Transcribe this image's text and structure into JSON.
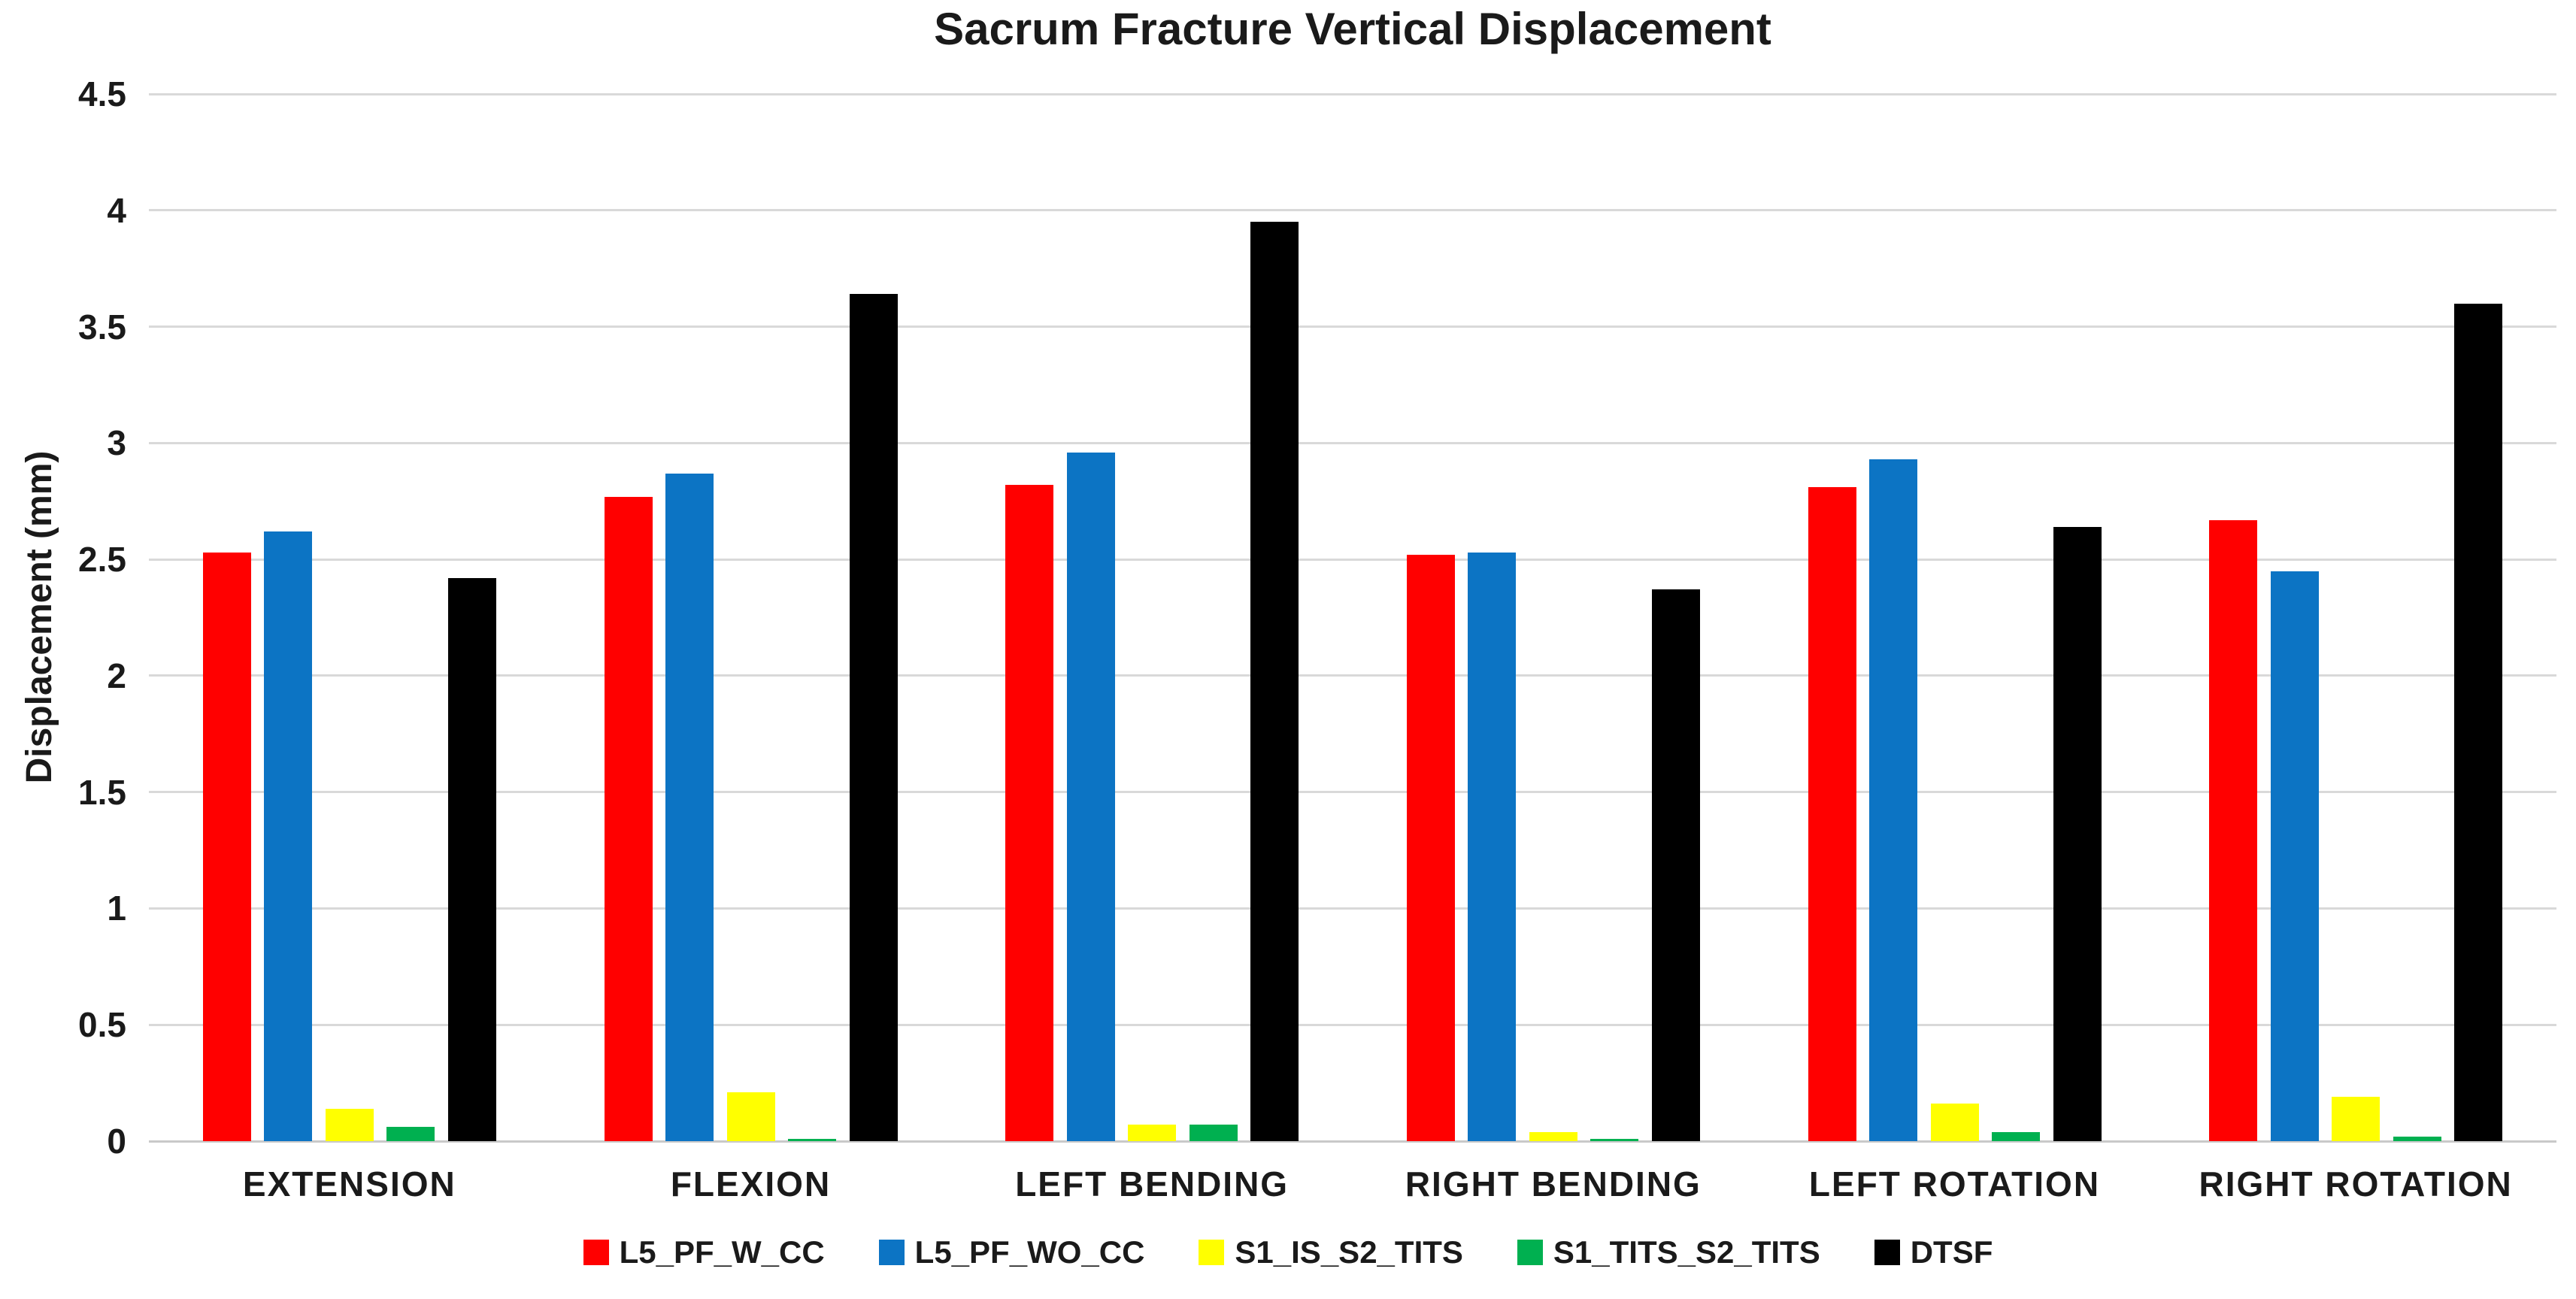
{
  "chart_data": {
    "type": "bar",
    "title": "Sacrum Fracture Vertical Displacement",
    "ylabel": "Displacement (mm)",
    "xlabel": "",
    "categories": [
      "EXTENSION",
      "FLEXION",
      "LEFT BENDING",
      "RIGHT BENDING",
      "LEFT ROTATION",
      "RIGHT ROTATION"
    ],
    "series": [
      {
        "name": "L5_PF_W_CC",
        "color": "#ff0000",
        "values": [
          2.53,
          2.77,
          2.82,
          2.52,
          2.81,
          2.67
        ]
      },
      {
        "name": "L5_PF_WO_CC",
        "color": "#0c74c4",
        "values": [
          2.62,
          2.87,
          2.96,
          2.53,
          2.93,
          2.45
        ]
      },
      {
        "name": "S1_IS_S2_TITS",
        "color": "#ffff00",
        "values": [
          0.14,
          0.21,
          0.07,
          0.04,
          0.16,
          0.19
        ]
      },
      {
        "name": "S1_TITS_S2_TITS",
        "color": "#00b050",
        "values": [
          0.06,
          0.01,
          0.07,
          0.01,
          0.04,
          0.02
        ]
      },
      {
        "name": "DTSF",
        "color": "#000000",
        "values": [
          2.42,
          3.64,
          3.95,
          2.37,
          2.64,
          3.6
        ]
      }
    ],
    "ylim": [
      0,
      4.5
    ],
    "ytick_step": 0.5,
    "ytick_labels": [
      "0",
      "0.5",
      "1",
      "1.5",
      "2",
      "2.5",
      "3",
      "3.5",
      "4",
      "4.5"
    ],
    "grid": "horizontal",
    "grid_color": "#d9d9d9",
    "text_color": "#1a1a1a",
    "background_color": "#ffffff",
    "legend_position": "bottom"
  }
}
